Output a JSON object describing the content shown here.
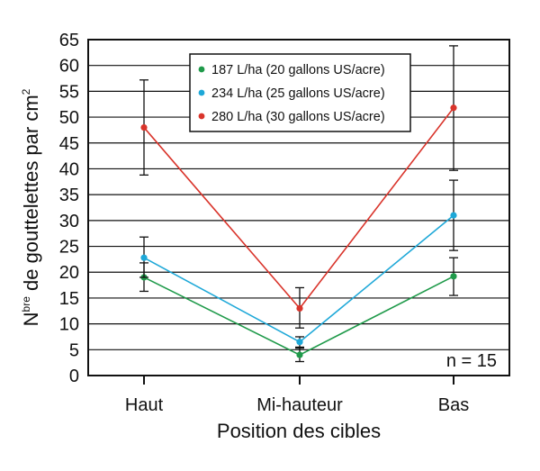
{
  "chart_data": {
    "type": "line",
    "title": "",
    "xlabel": "Position des cibles",
    "ylabel_main": "N",
    "ylabel_super": "bre",
    "ylabel_rest": " de gouttelettes par cm",
    "ylabel_unit_super": "2",
    "categories": [
      "Haut",
      "Mi-hauteur",
      "Bas"
    ],
    "ylim": [
      0,
      65
    ],
    "yticks": [
      0,
      5,
      10,
      15,
      20,
      25,
      30,
      35,
      40,
      45,
      50,
      55,
      60,
      65
    ],
    "grid": "horizontal",
    "legend_position": "top-center",
    "annotation": "n = 15",
    "series": [
      {
        "name": "187 L/ha (20 gallons US/acre)",
        "color": "#1f9a4a",
        "values": [
          19,
          4,
          19.2
        ],
        "error_low": [
          16.3,
          2.7,
          15.5
        ],
        "error_high": [
          21.8,
          5.5,
          22.8
        ]
      },
      {
        "name": "234 L/ha (25 gallons US/acre)",
        "color": "#1ea8d8",
        "values": [
          22.8,
          6.5,
          31
        ],
        "error_low": [
          19,
          5.3,
          24.2
        ],
        "error_high": [
          26.8,
          7.5,
          37.8
        ]
      },
      {
        "name": "280 L/ha (30 gallons US/acre)",
        "color": "#d9342b",
        "values": [
          48,
          13,
          51.8
        ],
        "error_low": [
          38.8,
          9.2,
          39.7
        ],
        "error_high": [
          57.2,
          17,
          63.8
        ]
      }
    ]
  }
}
